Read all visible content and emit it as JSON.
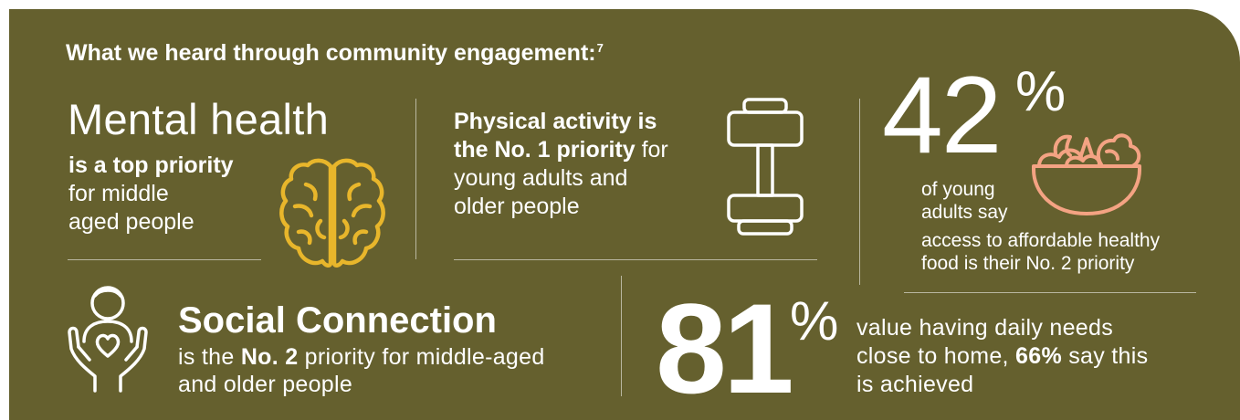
{
  "heading": {
    "text": "What we heard through community engagement:",
    "footnote": "7"
  },
  "mental_health": {
    "title": "Mental health",
    "bold": "is a top priority",
    "line2": "for middle",
    "line3": "aged people",
    "icon": "brain-icon",
    "icon_color": "#e8b62b"
  },
  "physical_activity": {
    "bold1": "Physical activity is",
    "bold2": "the No. 1 priority",
    "rest2": " for",
    "line3": "young adults and",
    "line4": "older people",
    "icon": "dumbbell-icon"
  },
  "healthy_food": {
    "value": "42",
    "pct": "%",
    "line1": "of young",
    "line2": "adults say",
    "line3": "access to affordable healthy",
    "line4": "food is their No. 2 priority",
    "icon": "salad-bowl-icon",
    "icon_color": "#f4a383"
  },
  "social_connection": {
    "title": "Social Connection",
    "pre": "is the ",
    "bold": "No. 2",
    "post": " priority for middle-aged",
    "line2": "and older people",
    "icon": "person-heart-hands-icon"
  },
  "daily_needs": {
    "value": "81",
    "pct": "%",
    "line1": "value having daily needs",
    "pre2": "close to home, ",
    "bold2": "66%",
    "post2": " say this",
    "line3": "is achieved"
  },
  "colors": {
    "background": "#65602e",
    "text": "#ffffff"
  }
}
